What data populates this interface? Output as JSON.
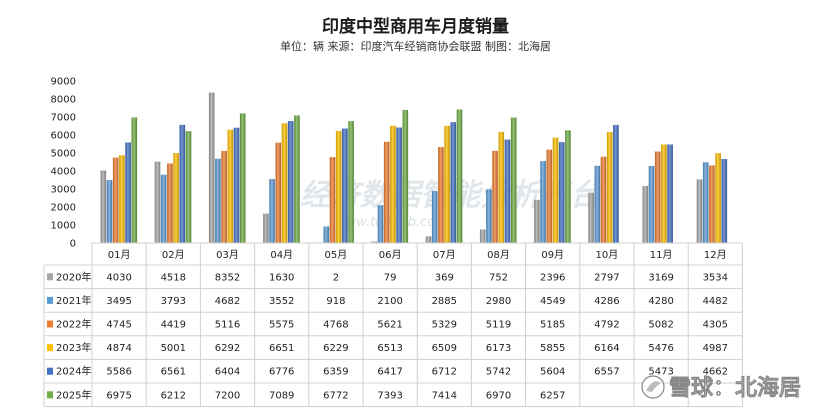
{
  "chart_data": {
    "type": "bar",
    "title": "印度中型商用车月度销量",
    "subtitle": "单位：辆 来源：印度汽车经销商协会联盟 制图：北海居",
    "categories": [
      "01月",
      "02月",
      "03月",
      "04月",
      "05月",
      "06月",
      "07月",
      "08月",
      "09月",
      "10月",
      "11月",
      "12月"
    ],
    "ylim": [
      0,
      9000
    ],
    "yticks": [
      0,
      1000,
      2000,
      3000,
      4000,
      5000,
      6000,
      7000,
      8000,
      9000
    ],
    "grid": false,
    "legend": "table-below",
    "series": [
      {
        "name": "2020年",
        "color": "#a6a6a6",
        "values": [
          4030,
          4518,
          8352,
          1630,
          2,
          79,
          369,
          752,
          2396,
          2797,
          3169,
          3534
        ]
      },
      {
        "name": "2021年",
        "color": "#5b9bd5",
        "values": [
          3495,
          3793,
          4682,
          3552,
          918,
          2100,
          2885,
          2980,
          4549,
          4286,
          4280,
          4482
        ]
      },
      {
        "name": "2022年",
        "color": "#ed7d31",
        "values": [
          4745,
          4419,
          5116,
          5575,
          4768,
          5621,
          5329,
          5119,
          5185,
          4792,
          5082,
          4305
        ]
      },
      {
        "name": "2023年",
        "color": "#ffc000",
        "values": [
          4874,
          5001,
          6292,
          6651,
          6229,
          6513,
          6509,
          6173,
          5855,
          6164,
          5476,
          4987
        ]
      },
      {
        "name": "2024年",
        "color": "#4472c4",
        "values": [
          5586,
          6561,
          6404,
          6776,
          6359,
          6417,
          6712,
          5742,
          5604,
          6557,
          5473,
          4662
        ]
      },
      {
        "name": "2025年",
        "color": "#70ad47",
        "values": [
          6975,
          6212,
          7200,
          7089,
          6772,
          7393,
          7414,
          6970,
          6257,
          null,
          null,
          null
        ]
      }
    ]
  },
  "watermark": {
    "text": "经济数据智能分析平台",
    "url": "www.topedb.com"
  },
  "brand": {
    "text": "雪球：北海居",
    "icon": "snowball-logo-icon"
  }
}
